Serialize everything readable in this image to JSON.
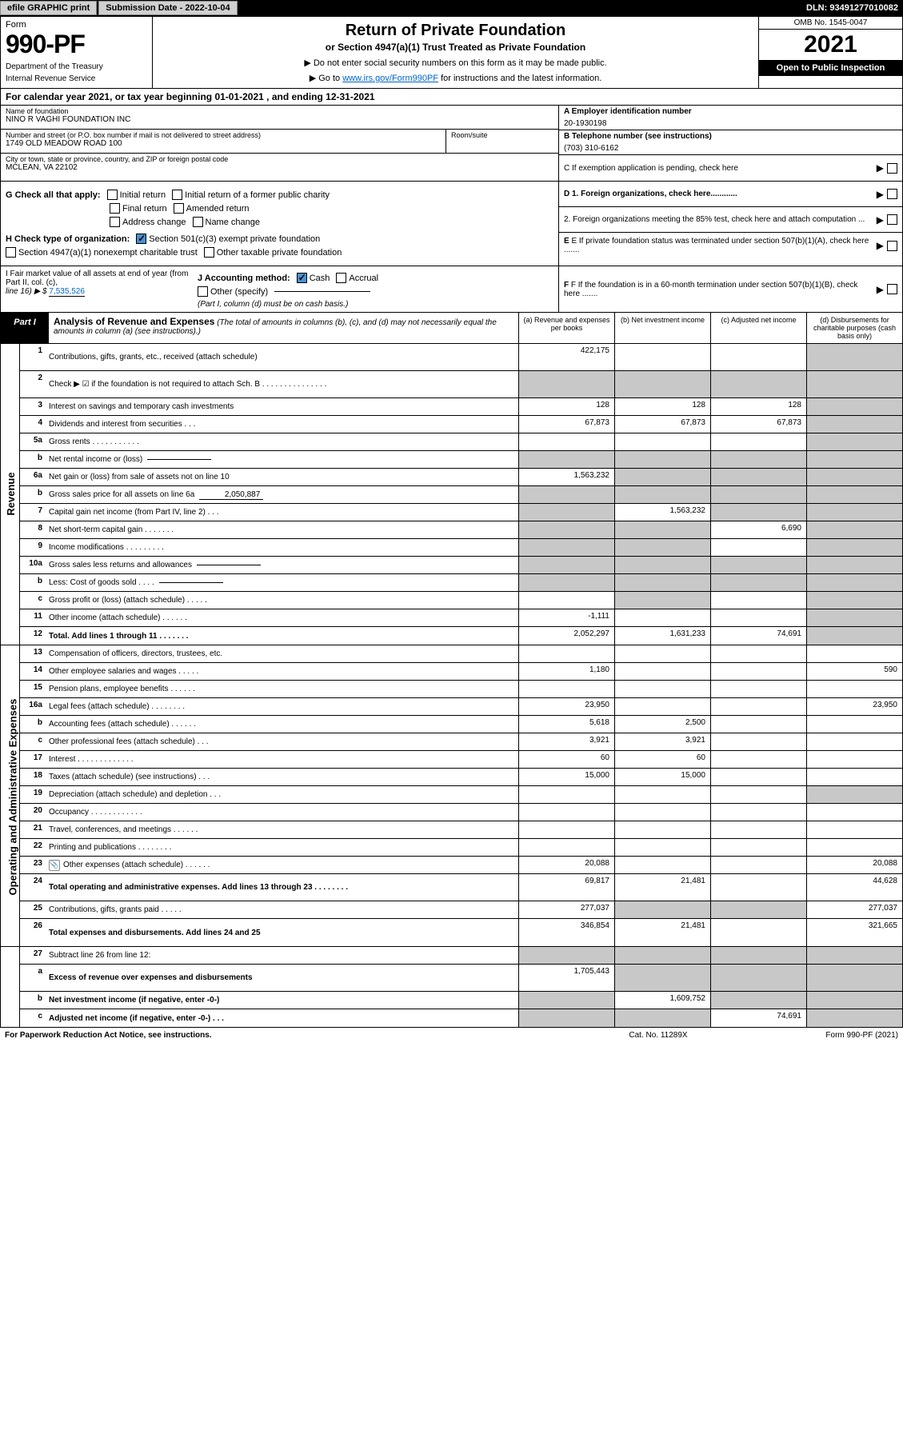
{
  "topbar": {
    "efile": "efile GRAPHIC print",
    "sub_label": "Submission Date - 2022-10-04",
    "dln": "DLN: 93491277010082"
  },
  "header": {
    "form_word": "Form",
    "form_num": "990-PF",
    "dept1": "Department of the Treasury",
    "dept2": "Internal Revenue Service",
    "title": "Return of Private Foundation",
    "subtitle": "or Section 4947(a)(1) Trust Treated as Private Foundation",
    "note1": "▶ Do not enter social security numbers on this form as it may be made public.",
    "note2_pre": "▶ Go to ",
    "note2_link": "www.irs.gov/Form990PF",
    "note2_post": " for instructions and the latest information.",
    "omb": "OMB No. 1545-0047",
    "year": "2021",
    "open_pub": "Open to Public Inspection"
  },
  "cal_year": "For calendar year 2021, or tax year beginning 01-01-2021                          , and ending 12-31-2021",
  "entity": {
    "name_label": "Name of foundation",
    "name": "NINO R VAGHI FOUNDATION INC",
    "addr_label": "Number and street (or P.O. box number if mail is not delivered to street address)",
    "addr": "1749 OLD MEADOW ROAD 100",
    "room_label": "Room/suite",
    "city_label": "City or town, state or province, country, and ZIP or foreign postal code",
    "city": "MCLEAN, VA  22102",
    "ein_label": "A Employer identification number",
    "ein": "20-1930198",
    "tel_label": "B Telephone number (see instructions)",
    "tel": "(703) 310-6162",
    "c_label": "C If exemption application is pending, check here"
  },
  "checks": {
    "g_label": "G Check all that apply:",
    "g_initial": "Initial return",
    "g_initial_former": "Initial return of a former public charity",
    "g_final": "Final return",
    "g_amended": "Amended return",
    "g_addr": "Address change",
    "g_name": "Name change",
    "h_label": "H Check type of organization:",
    "h_501c3": "Section 501(c)(3) exempt private foundation",
    "h_4947": "Section 4947(a)(1) nonexempt charitable trust",
    "h_other": "Other taxable private foundation",
    "d1": "D 1. Foreign organizations, check here............",
    "d2": "2. Foreign organizations meeting the 85% test, check here and attach computation ...",
    "e": "E If private foundation status was terminated under section 507(b)(1)(A), check here .......",
    "f": "F  If the foundation is in a 60-month termination under section 507(b)(1)(B), check here ......."
  },
  "fmv": {
    "i_label": "I Fair market value of all assets at end of year (from Part II, col. (c),",
    "i_line": "line 16) ▶ $",
    "i_val": "7,535,526",
    "j_label": "J Accounting method:",
    "j_cash": "Cash",
    "j_accrual": "Accrual",
    "j_other": "Other (specify)",
    "j_note": "(Part I, column (d) must be on cash basis.)"
  },
  "part1": {
    "tab": "Part I",
    "title": "Analysis of Revenue and Expenses",
    "subtitle": "(The total of amounts in columns (b), (c), and (d) may not necessarily equal the amounts in column (a) (see instructions).)",
    "col_a": "(a)   Revenue and expenses per books",
    "col_b": "(b)   Net investment income",
    "col_c": "(c)   Adjusted net income",
    "col_d": "(d)   Disbursements for charitable purposes (cash basis only)"
  },
  "sides": {
    "rev": "Revenue",
    "exp": "Operating and Administrative Expenses"
  },
  "rows": [
    {
      "ln": "1",
      "desc": "Contributions, gifts, grants, etc., received (attach schedule)",
      "a": "422,175",
      "b": "",
      "c": "",
      "d": "",
      "tall": true,
      "dgray": true
    },
    {
      "ln": "2",
      "desc": "Check ▶ ☑ if the foundation is not required to attach Sch. B    .  .  .  .  .  .  .  .  .  .  .  .  .  .  .",
      "a": null,
      "tall": true
    },
    {
      "ln": "3",
      "desc": "Interest on savings and temporary cash investments",
      "a": "128",
      "b": "128",
      "c": "128",
      "d": "",
      "dgray": true
    },
    {
      "ln": "4",
      "desc": "Dividends and interest from securities    .   .   .",
      "a": "67,873",
      "b": "67,873",
      "c": "67,873",
      "d": "",
      "dgray": true
    },
    {
      "ln": "5a",
      "desc": "Gross rents    .   .   .   .   .   .   .   .   .   .   .",
      "a": "",
      "b": "",
      "c": "",
      "d": "",
      "dgray": true
    },
    {
      "ln": "b",
      "desc": "Net rental income or (loss)",
      "inline": "",
      "a": null
    },
    {
      "ln": "6a",
      "desc": "Net gain or (loss) from sale of assets not on line 10",
      "a": "1,563,232",
      "b": "",
      "c": "",
      "d": "",
      "bgray": true,
      "cgray": true,
      "dgray": true
    },
    {
      "ln": "b",
      "desc": "Gross sales price for all assets on line 6a",
      "inline": "2,050,887",
      "a": null
    },
    {
      "ln": "7",
      "desc": "Capital gain net income (from Part IV, line 2)    .   .   .",
      "a": "",
      "b": "1,563,232",
      "c": "",
      "d": "",
      "agray": true,
      "cgray": true,
      "dgray": true
    },
    {
      "ln": "8",
      "desc": "Net short-term capital gain   .   .   .   .   .   .   .",
      "a": "",
      "b": "",
      "c": "6,690",
      "d": "",
      "agray": true,
      "bgray": true,
      "dgray": true
    },
    {
      "ln": "9",
      "desc": "Income modifications  .   .   .   .   .   .   .   .   .",
      "a": "",
      "b": "",
      "c": "",
      "d": "",
      "agray": true,
      "bgray": true,
      "dgray": true
    },
    {
      "ln": "10a",
      "desc": "Gross sales less returns and allowances",
      "inline": "",
      "a": null
    },
    {
      "ln": "b",
      "desc": "Less: Cost of goods sold     .    .    .    .",
      "inline": "",
      "a": null
    },
    {
      "ln": "c",
      "desc": "Gross profit or (loss) (attach schedule)      .   .   .   .   .",
      "a": "",
      "b": "",
      "c": "",
      "d": "",
      "bgray": true,
      "dgray": true
    },
    {
      "ln": "11",
      "desc": "Other income (attach schedule)    .   .   .   .   .   .",
      "a": "-1,111",
      "b": "",
      "c": "",
      "d": "",
      "dgray": true
    },
    {
      "ln": "12",
      "desc": "Total. Add lines 1 through 11   .   .   .   .   .   .   .",
      "a": "2,052,297",
      "b": "1,631,233",
      "c": "74,691",
      "d": "",
      "bold": true,
      "dgray": true
    }
  ],
  "exp_rows": [
    {
      "ln": "13",
      "desc": "Compensation of officers, directors, trustees, etc.",
      "a": "",
      "b": "",
      "c": "",
      "d": ""
    },
    {
      "ln": "14",
      "desc": "Other employee salaries and wages    .   .   .   .   .",
      "a": "1,180",
      "b": "",
      "c": "",
      "d": "590"
    },
    {
      "ln": "15",
      "desc": "Pension plans, employee benefits  .   .   .   .   .   .",
      "a": "",
      "b": "",
      "c": "",
      "d": ""
    },
    {
      "ln": "16a",
      "desc": "Legal fees (attach schedule)  .   .   .   .   .   .   .   .",
      "a": "23,950",
      "b": "",
      "c": "",
      "d": "23,950"
    },
    {
      "ln": "b",
      "desc": "Accounting fees (attach schedule)  .   .   .   .   .   .",
      "a": "5,618",
      "b": "2,500",
      "c": "",
      "d": ""
    },
    {
      "ln": "c",
      "desc": "Other professional fees (attach schedule)     .   .   .",
      "a": "3,921",
      "b": "3,921",
      "c": "",
      "d": ""
    },
    {
      "ln": "17",
      "desc": "Interest  .   .   .   .   .   .   .   .   .   .   .   .   .",
      "a": "60",
      "b": "60",
      "c": "",
      "d": ""
    },
    {
      "ln": "18",
      "desc": "Taxes (attach schedule) (see instructions)      .   .   .",
      "a": "15,000",
      "b": "15,000",
      "c": "",
      "d": ""
    },
    {
      "ln": "19",
      "desc": "Depreciation (attach schedule) and depletion    .   .   .",
      "a": "",
      "b": "",
      "c": "",
      "d": "",
      "dgray": true
    },
    {
      "ln": "20",
      "desc": "Occupancy  .   .   .   .   .   .   .   .   .   .   .   .",
      "a": "",
      "b": "",
      "c": "",
      "d": ""
    },
    {
      "ln": "21",
      "desc": "Travel, conferences, and meetings  .   .   .   .   .   .",
      "a": "",
      "b": "",
      "c": "",
      "d": ""
    },
    {
      "ln": "22",
      "desc": "Printing and publications  .   .   .   .   .   .   .   .",
      "a": "",
      "b": "",
      "c": "",
      "d": ""
    },
    {
      "ln": "23",
      "desc": "Other expenses (attach schedule)  .   .   .   .   .   .",
      "a": "20,088",
      "b": "",
      "c": "",
      "d": "20,088",
      "icon": true
    },
    {
      "ln": "24",
      "desc": "Total operating and administrative expenses. Add lines 13 through 23   .   .   .   .   .   .   .   .",
      "a": "69,817",
      "b": "21,481",
      "c": "",
      "d": "44,628",
      "bold": true,
      "tall": true
    },
    {
      "ln": "25",
      "desc": "Contributions, gifts, grants paid      .   .   .   .   .",
      "a": "277,037",
      "b": "",
      "c": "",
      "d": "277,037",
      "bgray": true,
      "cgray": true
    },
    {
      "ln": "26",
      "desc": "Total expenses and disbursements. Add lines 24 and 25",
      "a": "346,854",
      "b": "21,481",
      "c": "",
      "d": "321,665",
      "bold": true,
      "tall": true
    }
  ],
  "bottom_rows": [
    {
      "ln": "27",
      "desc": "Subtract line 26 from line 12:",
      "a": "",
      "b": "",
      "c": "",
      "d": "",
      "agray": true,
      "bgray": true,
      "cgray": true,
      "dgray": true
    },
    {
      "ln": "a",
      "desc": "Excess of revenue over expenses and disbursements",
      "a": "1,705,443",
      "b": "",
      "c": "",
      "d": "",
      "bold": true,
      "bgray": true,
      "cgray": true,
      "dgray": true,
      "tall": true
    },
    {
      "ln": "b",
      "desc": "Net investment income (if negative, enter -0-)",
      "a": "",
      "b": "1,609,752",
      "c": "",
      "d": "",
      "bold": true,
      "agray": true,
      "cgray": true,
      "dgray": true
    },
    {
      "ln": "c",
      "desc": "Adjusted net income (if negative, enter -0-)    .   .   .",
      "a": "",
      "b": "",
      "c": "74,691",
      "d": "",
      "bold": true,
      "agray": true,
      "bgray": true,
      "dgray": true
    }
  ],
  "footer": {
    "left": "For Paperwork Reduction Act Notice, see instructions.",
    "mid": "Cat. No. 11289X",
    "right": "Form 990-PF (2021)"
  }
}
